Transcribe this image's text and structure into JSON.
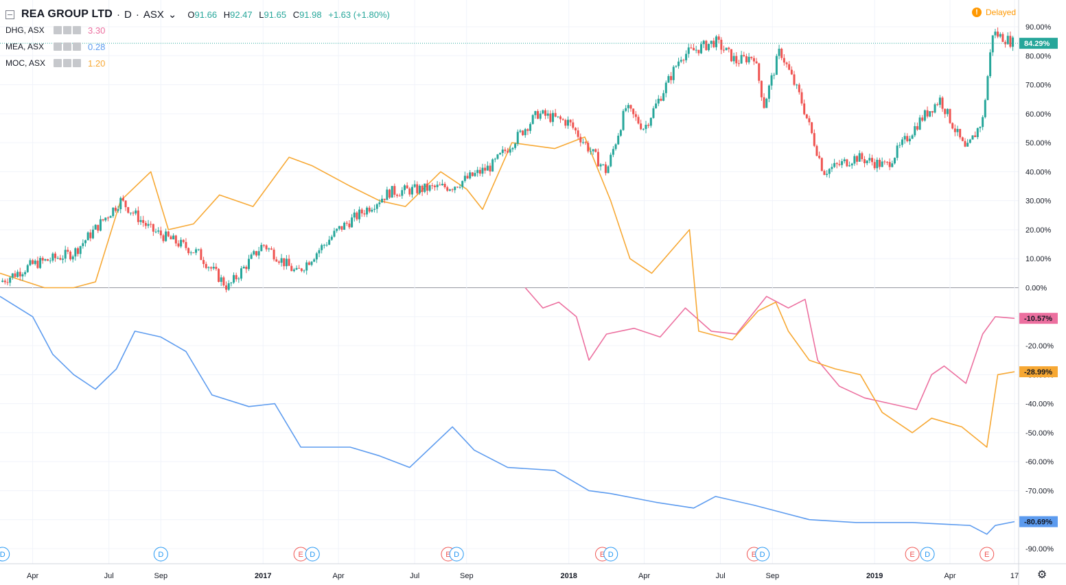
{
  "header": {
    "symbol": "REA GROUP LTD",
    "interval": "D",
    "exchange": "ASX",
    "open_label": "O",
    "open": "91.66",
    "high_label": "H",
    "high": "92.47",
    "low_label": "L",
    "low": "91.65",
    "close_label": "C",
    "close": "91.98",
    "change": "+1.63 (+1.80%)",
    "delayed_label": "Delayed"
  },
  "compare": [
    {
      "name": "DHG, ASX",
      "value": "3.30",
      "color": "#ec6f9f"
    },
    {
      "name": "MEA, ASX",
      "value": "0.28",
      "color": "#5c9bef"
    },
    {
      "name": "MOC, ASX",
      "value": "1.20",
      "color": "#f7a833"
    }
  ],
  "colors": {
    "up": "#26a69a",
    "down": "#ef5350",
    "grid": "#f0f3fa",
    "zero": "#9598a1"
  },
  "chart_data": {
    "type": "line",
    "y_unit": "%",
    "ylim": [
      -90,
      90
    ],
    "y_ticks": [
      90,
      80,
      70,
      60,
      50,
      40,
      30,
      20,
      10,
      0,
      -10,
      -20,
      -30,
      -40,
      -50,
      -60,
      -70,
      -80,
      -90
    ],
    "y_tick_labels": [
      "90.00%",
      "80.00%",
      "70.00%",
      "60.00%",
      "50.00%",
      "40.00%",
      "30.00%",
      "20.00%",
      "10.00%",
      "0.00%",
      "-10.00%",
      "-20.00%",
      "-30.00%",
      "-40.00%",
      "-50.00%",
      "-60.00%",
      "-70.00%",
      "-80.00%",
      "-90.00%"
    ],
    "x_range": [
      "2016-02-22",
      "2019-06-17"
    ],
    "x_ticks": [
      {
        "date": "2016-04-01",
        "label": "Apr",
        "bold": false
      },
      {
        "date": "2016-07-01",
        "label": "Jul",
        "bold": false
      },
      {
        "date": "2016-09-01",
        "label": "Sep",
        "bold": false
      },
      {
        "date": "2017-01-01",
        "label": "2017",
        "bold": true
      },
      {
        "date": "2017-04-01",
        "label": "Apr",
        "bold": false
      },
      {
        "date": "2017-07-01",
        "label": "Jul",
        "bold": false
      },
      {
        "date": "2017-09-01",
        "label": "Sep",
        "bold": false
      },
      {
        "date": "2018-01-01",
        "label": "2018",
        "bold": true
      },
      {
        "date": "2018-04-01",
        "label": "Apr",
        "bold": false
      },
      {
        "date": "2018-07-01",
        "label": "Jul",
        "bold": false
      },
      {
        "date": "2018-09-01",
        "label": "Sep",
        "bold": false
      },
      {
        "date": "2019-01-01",
        "label": "2019",
        "bold": true
      },
      {
        "date": "2019-04-01",
        "label": "Apr",
        "bold": false
      },
      {
        "date": "2019-06-17",
        "label": "17",
        "bold": false
      }
    ],
    "series": [
      {
        "name": "REA GROUP LTD",
        "style": "candle",
        "x": [
          "2016-02-22",
          "2016-04-01",
          "2016-05-20",
          "2016-07-15",
          "2016-08-20",
          "2016-10-15",
          "2016-11-20",
          "2017-01-01",
          "2017-02-10",
          "2017-04-01",
          "2017-06-01",
          "2017-08-15",
          "2017-10-01",
          "2017-11-25",
          "2018-01-01",
          "2018-02-15",
          "2018-03-10",
          "2018-04-01",
          "2018-05-15",
          "2018-06-25",
          "2018-07-20",
          "2018-08-10",
          "2018-08-22",
          "2018-09-10",
          "2018-10-05",
          "2018-11-01",
          "2018-12-10",
          "2019-01-15",
          "2019-02-25",
          "2019-03-20",
          "2019-04-20",
          "2019-05-10",
          "2019-05-22",
          "2019-06-17"
        ],
        "y": [
          2,
          8,
          12,
          30,
          20,
          12,
          0,
          15,
          5,
          20,
          33,
          35,
          42,
          60,
          57,
          40,
          62,
          55,
          80,
          85,
          78,
          80,
          63,
          82,
          65,
          40,
          45,
          42,
          58,
          65,
          47,
          58,
          88,
          84.29
        ]
      },
      {
        "name": "DHG, ASX",
        "style": "line",
        "color": "#ec6f9f",
        "x": [
          "2017-11-10",
          "2017-12-01",
          "2017-12-20",
          "2018-01-10",
          "2018-01-25",
          "2018-02-15",
          "2018-03-20",
          "2018-04-20",
          "2018-05-20",
          "2018-06-20",
          "2018-07-20",
          "2018-08-25",
          "2018-09-20",
          "2018-10-10",
          "2018-10-25",
          "2018-11-20",
          "2018-12-20",
          "2019-01-20",
          "2019-02-20",
          "2019-03-10",
          "2019-03-25",
          "2019-04-20",
          "2019-05-10",
          "2019-05-25",
          "2019-06-17"
        ],
        "y": [
          0,
          -7,
          -5,
          -10,
          -25,
          -16,
          -14,
          -17,
          -7,
          -15,
          -16,
          -3,
          -7,
          -4,
          -25,
          -34,
          -38,
          -40,
          -42,
          -30,
          -27,
          -33,
          -16,
          -10,
          -10.57
        ]
      },
      {
        "name": "MEA, ASX",
        "style": "line",
        "color": "#5c9bef",
        "x": [
          "2016-02-22",
          "2016-04-01",
          "2016-04-25",
          "2016-05-20",
          "2016-06-15",
          "2016-07-10",
          "2016-08-01",
          "2016-09-01",
          "2016-10-01",
          "2016-11-01",
          "2016-12-15",
          "2017-01-15",
          "2017-02-15",
          "2017-03-15",
          "2017-04-15",
          "2017-05-20",
          "2017-06-25",
          "2017-08-15",
          "2017-09-10",
          "2017-10-20",
          "2017-12-15",
          "2018-01-25",
          "2018-02-20",
          "2018-04-15",
          "2018-05-30",
          "2018-06-25",
          "2018-08-10",
          "2018-10-15",
          "2018-12-10",
          "2019-02-15",
          "2019-04-25",
          "2019-05-15",
          "2019-05-25",
          "2019-06-17"
        ],
        "y": [
          -3,
          -10,
          -23,
          -30,
          -35,
          -28,
          -15,
          -17,
          -22,
          -37,
          -41,
          -40,
          -55,
          -55,
          -55,
          -58,
          -62,
          -48,
          -56,
          -62,
          -63,
          -70,
          -71,
          -74,
          -76,
          -72,
          -75,
          -80,
          -81,
          -81,
          -82,
          -85,
          -82,
          -80.69
        ]
      },
      {
        "name": "MOC, ASX",
        "style": "line",
        "color": "#f7a833",
        "x": [
          "2016-02-22",
          "2016-04-15",
          "2016-05-20",
          "2016-06-15",
          "2016-07-15",
          "2016-08-20",
          "2016-09-10",
          "2016-10-10",
          "2016-11-10",
          "2016-12-20",
          "2017-02-01",
          "2017-03-01",
          "2017-04-15",
          "2017-05-20",
          "2017-06-20",
          "2017-08-01",
          "2017-09-01",
          "2017-09-20",
          "2017-10-25",
          "2017-12-15",
          "2018-01-20",
          "2018-02-20",
          "2018-03-15",
          "2018-04-10",
          "2018-05-25",
          "2018-06-05",
          "2018-07-15",
          "2018-08-15",
          "2018-09-05",
          "2018-09-20",
          "2018-10-15",
          "2018-11-15",
          "2018-12-15",
          "2019-01-10",
          "2019-02-15",
          "2019-03-10",
          "2019-04-15",
          "2019-05-15",
          "2019-05-28",
          "2019-06-17"
        ],
        "y": [
          5,
          0,
          0,
          2,
          30,
          40,
          20,
          22,
          32,
          28,
          45,
          42,
          35,
          30,
          28,
          40,
          34,
          27,
          50,
          48,
          52,
          30,
          10,
          5,
          20,
          -15,
          -18,
          -8,
          -5,
          -15,
          -25,
          -28,
          -30,
          -43,
          -50,
          -45,
          -48,
          -55,
          -30,
          -28.99
        ]
      }
    ],
    "last_value_labels": [
      {
        "series": "REA GROUP LTD",
        "text": "84.29%",
        "value": 84.29,
        "color": "#26a69a"
      },
      {
        "series": "DHG, ASX",
        "text": "-10.57%",
        "value": -10.57,
        "color": "#ec6f9f"
      },
      {
        "series": "MOC, ASX",
        "text": "-28.99%",
        "value": -28.99,
        "color": "#f7a833"
      },
      {
        "series": "MEA, ASX",
        "text": "-80.69%",
        "value": -80.69,
        "color": "#5c9bef"
      }
    ],
    "events": [
      {
        "date": "2016-02-25",
        "label": "D",
        "type": "dividend"
      },
      {
        "date": "2016-09-01",
        "label": "D",
        "type": "dividend"
      },
      {
        "date": "2017-02-15",
        "label": "E",
        "type": "earnings"
      },
      {
        "date": "2017-03-01",
        "label": "D",
        "type": "dividend"
      },
      {
        "date": "2017-08-10",
        "label": "E",
        "type": "earnings"
      },
      {
        "date": "2017-08-20",
        "label": "D",
        "type": "dividend"
      },
      {
        "date": "2018-02-10",
        "label": "E",
        "type": "earnings"
      },
      {
        "date": "2018-02-20",
        "label": "D",
        "type": "dividend"
      },
      {
        "date": "2018-08-10",
        "label": "E",
        "type": "earnings"
      },
      {
        "date": "2018-08-20",
        "label": "D",
        "type": "dividend"
      },
      {
        "date": "2019-02-15",
        "label": "E",
        "type": "earnings"
      },
      {
        "date": "2019-03-05",
        "label": "D",
        "type": "dividend"
      },
      {
        "date": "2019-05-15",
        "label": "E",
        "type": "earnings"
      }
    ]
  }
}
